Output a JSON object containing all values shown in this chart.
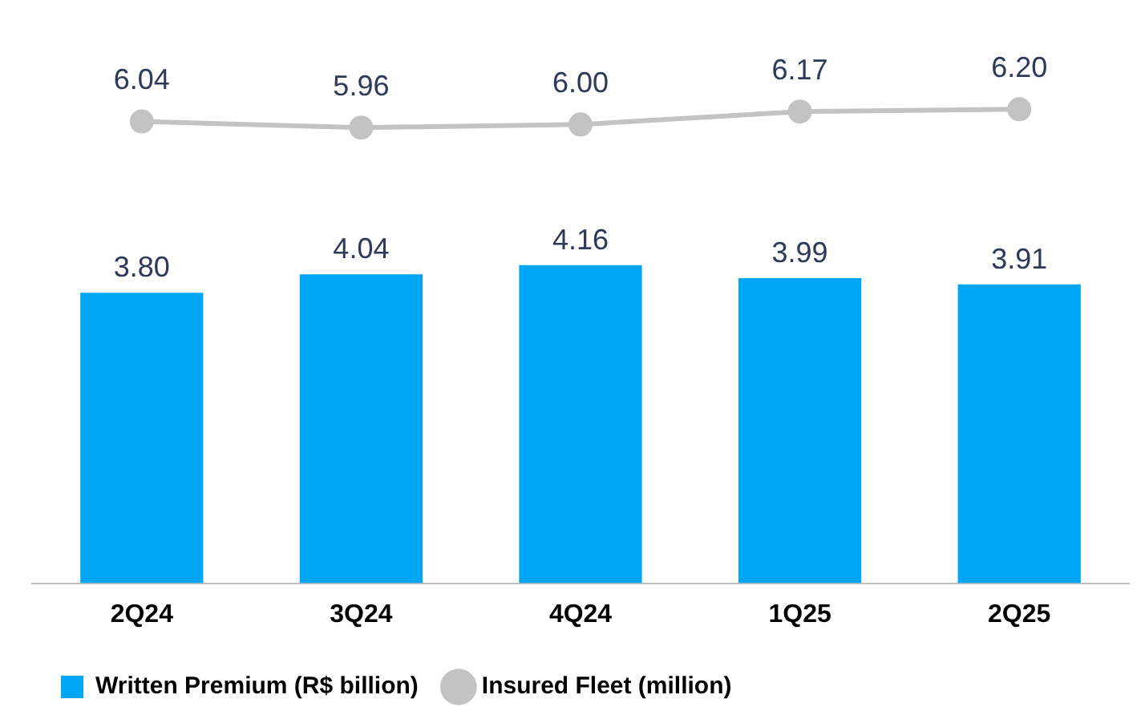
{
  "chart_data": {
    "type": "bar",
    "categories": [
      "2Q24",
      "3Q24",
      "4Q24",
      "1Q25",
      "2Q25"
    ],
    "series": [
      {
        "name": "Written Premium (R$ billion)",
        "color": "#00a6f6",
        "values": [
          3.8,
          4.04,
          4.16,
          3.99,
          3.91
        ],
        "value_labels": [
          "3.80",
          "4.04",
          "4.16",
          "3.99",
          "3.91"
        ]
      },
      {
        "name": "Insured Fleet (million)",
        "type": "line",
        "color": "#c3c3c3",
        "values": [
          6.04,
          5.96,
          6.0,
          6.17,
          6.2
        ],
        "value_labels": [
          "6.04",
          "5.96",
          "6.00",
          "6.17",
          "6.20"
        ]
      }
    ],
    "legend": "bottom left",
    "tick_labels": "x",
    "grid": false,
    "marker": "circle",
    "line_style": "solid"
  }
}
